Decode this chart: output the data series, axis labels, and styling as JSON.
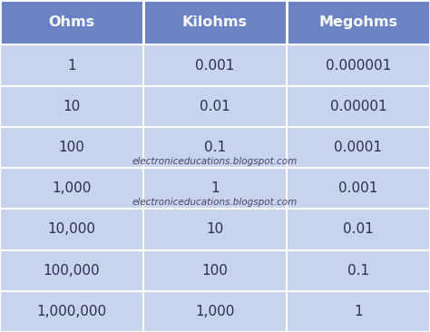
{
  "headers": [
    "Ohms",
    "Kilohms",
    "Megohms"
  ],
  "rows": [
    [
      "1",
      "0.001",
      "0.000001"
    ],
    [
      "10",
      "0.01",
      "0.00001"
    ],
    [
      "100",
      "0.1",
      "0.0001"
    ],
    [
      "1,000",
      "1",
      "0.001"
    ],
    [
      "10,000",
      "10",
      "0.01"
    ],
    [
      "100,000",
      "100",
      "0.1"
    ],
    [
      "1,000,000",
      "1,000",
      "1"
    ]
  ],
  "watermark_after_row": [
    2,
    3
  ],
  "watermark_text": "electroniceducations.blogspot.com",
  "header_bg": "#6b82c4",
  "header_text": "#ffffff",
  "row_bg": "#c8d4ee",
  "cell_text": "#2a3050",
  "border_color": "#ffffff",
  "fig_bg": "#c8d4ee",
  "header_fontsize": 11.5,
  "cell_fontsize": 11,
  "watermark_fontsize": 7.5,
  "watermark_text_color": "#444466"
}
